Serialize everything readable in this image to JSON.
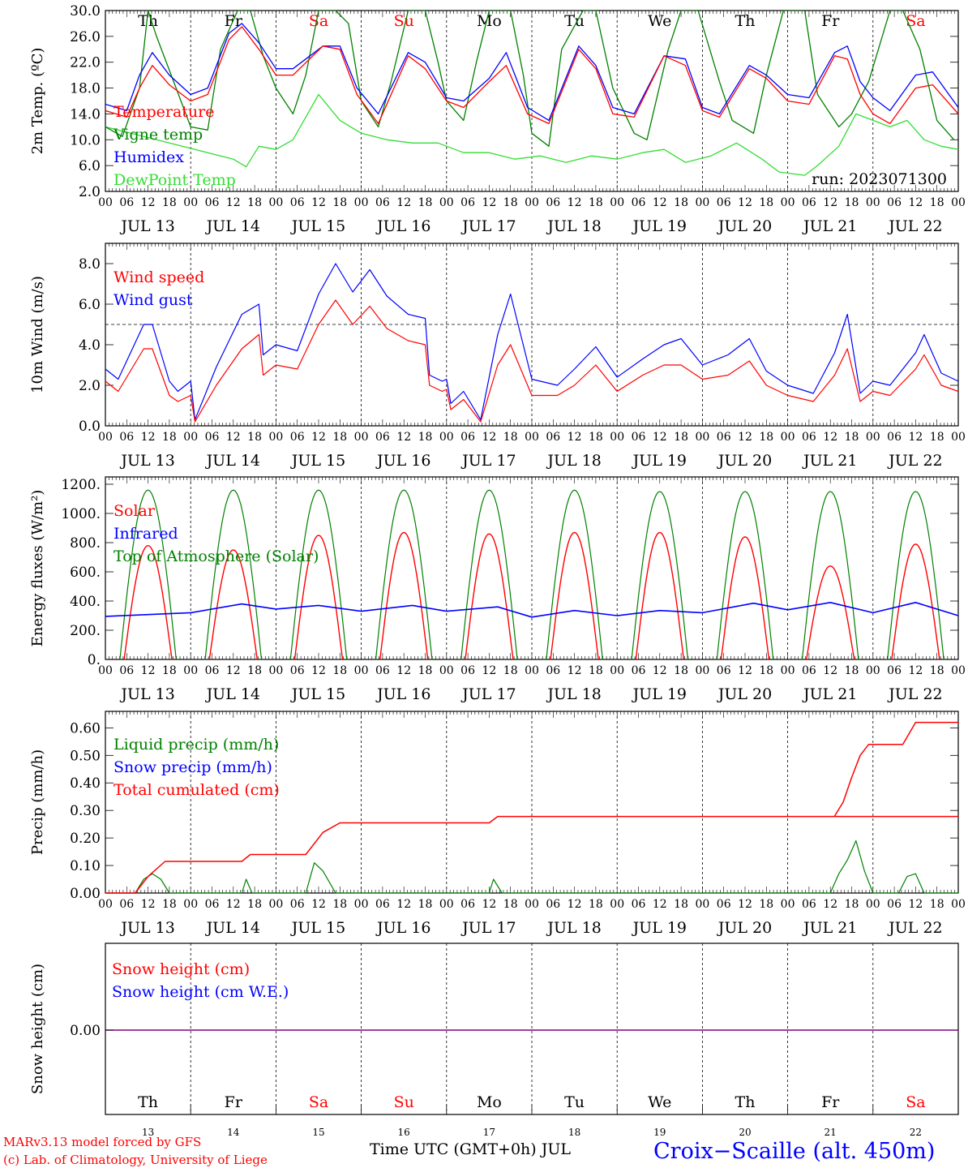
{
  "colors": {
    "red": "#ff0000",
    "blue": "#0000ff",
    "green": "#008000",
    "lightgreen": "#33dd33",
    "purple": "#800080",
    "black": "#000000"
  },
  "days": [
    {
      "wd": "Th",
      "date": "JUL 13",
      "num": "13",
      "weekend": false
    },
    {
      "wd": "Fr",
      "date": "JUL 14",
      "num": "14",
      "weekend": false
    },
    {
      "wd": "Sa",
      "date": "JUL 15",
      "num": "15",
      "weekend": true
    },
    {
      "wd": "Su",
      "date": "JUL 16",
      "num": "16",
      "weekend": true
    },
    {
      "wd": "Mo",
      "date": "JUL 17",
      "num": "17",
      "weekend": false
    },
    {
      "wd": "Tu",
      "date": "JUL 18",
      "num": "18",
      "weekend": false
    },
    {
      "wd": "We",
      "date": "JUL 19",
      "num": "19",
      "weekend": false
    },
    {
      "wd": "Th",
      "date": "JUL 20",
      "num": "20",
      "weekend": false
    },
    {
      "wd": "Fr",
      "date": "JUL 21",
      "num": "21",
      "weekend": false
    },
    {
      "wd": "Sa",
      "date": "JUL 22",
      "num": "22",
      "weekend": true
    }
  ],
  "hour_ticks": [
    "00",
    "06",
    "12",
    "18"
  ],
  "run_label": "run: 2023071300",
  "footer": {
    "model": "MARv3.13 model forced by GFS",
    "copyright": "(c) Lab. of Climatology, University of Liege",
    "xlabel": "Time UTC (GMT+0h) JUL",
    "station": "Croix−Scaille (alt. 450m)"
  },
  "chart_data": [
    {
      "type": "line",
      "ylabel": "2m Temp. (ºC)",
      "ylim": [
        2.0,
        30.0
      ],
      "yticks": [
        2.0,
        6.0,
        10.0,
        14.0,
        18.0,
        22.0,
        26.0,
        30.0
      ],
      "ytick_labels": [
        "2.0",
        "6.0",
        "10.0",
        "14.0",
        "18.0",
        "22.0",
        "26.0",
        "30.0"
      ],
      "x_unit": "day index since 13 JUL 00 UTC",
      "series": [
        {
          "name": "Temperature",
          "color": "#ff0000",
          "x": [
            0,
            0.25,
            0.4,
            0.55,
            0.75,
            1.0,
            1.2,
            1.45,
            1.6,
            1.8,
            2.0,
            2.2,
            2.55,
            2.75,
            2.95,
            3.2,
            3.55,
            3.75,
            4.0,
            4.2,
            4.5,
            4.7,
            4.95,
            5.2,
            5.55,
            5.75,
            5.95,
            6.2,
            6.55,
            6.8,
            7.0,
            7.2,
            7.55,
            7.75,
            8.0,
            8.25,
            8.55,
            8.7,
            8.85,
            9.0,
            9.2,
            9.5,
            9.7,
            10.0
          ],
          "y": [
            14.5,
            13.5,
            18,
            21.5,
            18.5,
            16,
            17,
            25.5,
            27.5,
            24,
            20,
            20,
            24.5,
            24,
            17,
            12.5,
            23,
            21,
            16,
            15,
            19,
            21.5,
            14,
            12.5,
            24,
            21,
            14,
            13.5,
            23,
            21.5,
            14.5,
            13.5,
            21,
            19.5,
            16,
            15.5,
            23,
            22.5,
            17,
            14,
            12.5,
            18,
            18.5,
            14
          ]
        },
        {
          "name": "Vigne temp",
          "color": "#008000",
          "x": [
            0,
            0.2,
            0.4,
            0.5,
            0.6,
            0.8,
            1.0,
            1.2,
            1.35,
            1.55,
            1.7,
            1.85,
            2.0,
            2.2,
            2.35,
            2.5,
            2.7,
            2.85,
            3.0,
            3.2,
            3.35,
            3.55,
            3.75,
            3.9,
            4.0,
            4.2,
            4.35,
            4.5,
            4.75,
            4.9,
            5.0,
            5.2,
            5.35,
            5.6,
            5.75,
            5.95,
            6.2,
            6.35,
            6.6,
            6.75,
            6.95,
            7.2,
            7.35,
            7.6,
            7.75,
            7.95,
            8.2,
            8.35,
            8.6,
            8.75,
            8.95,
            9.2,
            9.35,
            9.55,
            9.75,
            9.95
          ],
          "y": [
            12,
            10.5,
            18,
            30,
            26,
            19,
            12,
            11.5,
            24,
            30,
            30,
            23,
            18,
            14,
            20,
            30,
            30,
            28,
            16,
            12,
            19,
            30,
            30,
            22,
            16,
            13,
            22,
            30,
            30,
            20,
            11,
            9,
            24,
            30,
            30,
            18,
            11,
            10,
            24,
            30,
            30,
            19,
            13,
            11,
            20,
            30,
            30,
            17,
            12,
            14,
            19,
            30,
            30,
            24,
            13,
            10
          ]
        },
        {
          "name": "Humidex",
          "color": "#0000ff",
          "x": [
            0,
            0.25,
            0.4,
            0.55,
            0.75,
            1.0,
            1.2,
            1.45,
            1.6,
            1.8,
            2.0,
            2.2,
            2.55,
            2.75,
            2.95,
            3.2,
            3.55,
            3.75,
            4.0,
            4.2,
            4.5,
            4.7,
            4.95,
            5.2,
            5.55,
            5.75,
            5.95,
            6.2,
            6.55,
            6.8,
            7.0,
            7.2,
            7.55,
            7.75,
            8.0,
            8.25,
            8.55,
            8.7,
            8.85,
            9.0,
            9.2,
            9.5,
            9.7,
            10.0
          ],
          "y": [
            15.5,
            14.5,
            20,
            23.5,
            20,
            17,
            18,
            26.5,
            28,
            25,
            21,
            21,
            24.5,
            24.5,
            18,
            14,
            23.5,
            22,
            16.5,
            16,
            19.5,
            23.5,
            15,
            13,
            24.5,
            21.5,
            15,
            14,
            23,
            22.5,
            15,
            14,
            21.5,
            20,
            17,
            16.5,
            23.5,
            24.5,
            19,
            16.5,
            14.5,
            20,
            20.5,
            15
          ]
        },
        {
          "name": "DewPoint Temp",
          "color": "#33dd33",
          "x": [
            0,
            0.3,
            0.6,
            0.9,
            1.2,
            1.5,
            1.65,
            1.8,
            2.0,
            2.2,
            2.5,
            2.75,
            3.0,
            3.3,
            3.6,
            3.9,
            4.2,
            4.5,
            4.8,
            5.1,
            5.4,
            5.7,
            6.0,
            6.3,
            6.55,
            6.8,
            7.1,
            7.4,
            7.7,
            7.9,
            8.2,
            8.35,
            8.6,
            8.8,
            9.0,
            9.2,
            9.4,
            9.6,
            9.8,
            10.0
          ],
          "y": [
            12,
            11,
            10,
            9,
            8,
            7,
            5.8,
            9,
            8.5,
            10,
            17,
            13,
            11,
            10,
            9.5,
            9.5,
            8,
            8,
            7,
            7.5,
            6.5,
            7.5,
            7,
            8,
            8.5,
            6.5,
            7.5,
            9.5,
            7,
            5,
            4.5,
            6,
            9,
            14,
            13,
            12,
            13,
            10,
            9,
            8.5
          ]
        }
      ]
    },
    {
      "type": "line",
      "ylabel": "10m Wind (m/s)",
      "ylim": [
        0.0,
        9.0
      ],
      "yticks": [
        0.0,
        2.0,
        4.0,
        6.0,
        8.0
      ],
      "ytick_labels": [
        "0.0",
        "2.0",
        "4.0",
        "6.0",
        "8.0"
      ],
      "threshold": 5.0,
      "series": [
        {
          "name": "Wind speed",
          "color": "#ff0000",
          "x": [
            0,
            0.15,
            0.45,
            0.55,
            0.75,
            0.85,
            1.0,
            1.05,
            1.3,
            1.6,
            1.8,
            1.85,
            2.0,
            2.25,
            2.5,
            2.7,
            2.9,
            3.1,
            3.3,
            3.55,
            3.75,
            3.8,
            3.95,
            4.0,
            4.05,
            4.2,
            4.4,
            4.6,
            4.75,
            5.0,
            5.3,
            5.5,
            5.75,
            6.0,
            6.3,
            6.55,
            6.75,
            7.0,
            7.3,
            7.55,
            7.75,
            8.0,
            8.3,
            8.55,
            8.7,
            8.85,
            9.0,
            9.2,
            9.5,
            9.6,
            9.8,
            10.0
          ],
          "y": [
            2.2,
            1.7,
            3.8,
            3.8,
            1.5,
            1.2,
            1.5,
            0.2,
            2.0,
            3.8,
            4.5,
            2.5,
            3.0,
            2.8,
            5.0,
            6.2,
            5.0,
            5.9,
            4.8,
            4.2,
            4.0,
            2.0,
            1.7,
            1.8,
            0.8,
            1.3,
            0.2,
            3.0,
            4.0,
            1.5,
            1.5,
            2.0,
            3.0,
            1.7,
            2.5,
            3.0,
            3.0,
            2.3,
            2.5,
            3.2,
            2.0,
            1.5,
            1.2,
            2.5,
            3.8,
            1.2,
            1.7,
            1.5,
            2.8,
            3.5,
            2.0,
            1.7
          ]
        },
        {
          "name": "Wind gust",
          "color": "#0000ff",
          "x": [
            0,
            0.15,
            0.45,
            0.55,
            0.75,
            0.85,
            1.0,
            1.05,
            1.3,
            1.6,
            1.8,
            1.85,
            2.0,
            2.25,
            2.5,
            2.7,
            2.9,
            3.1,
            3.3,
            3.55,
            3.75,
            3.8,
            3.95,
            4.0,
            4.05,
            4.2,
            4.4,
            4.6,
            4.75,
            5.0,
            5.3,
            5.5,
            5.75,
            6.0,
            6.3,
            6.55,
            6.75,
            7.0,
            7.3,
            7.55,
            7.75,
            8.0,
            8.3,
            8.55,
            8.7,
            8.85,
            9.0,
            9.2,
            9.5,
            9.6,
            9.8,
            10.0
          ],
          "y": [
            2.8,
            2.3,
            5.0,
            5.0,
            2.2,
            1.7,
            2.2,
            0.3,
            2.9,
            5.5,
            6.0,
            3.5,
            4.0,
            3.7,
            6.5,
            8.0,
            6.6,
            7.7,
            6.4,
            5.5,
            5.3,
            2.5,
            2.2,
            2.3,
            1.1,
            1.7,
            0.3,
            4.5,
            6.5,
            2.3,
            2.0,
            2.8,
            3.9,
            2.4,
            3.3,
            4.0,
            4.3,
            3.0,
            3.5,
            4.3,
            2.7,
            2.0,
            1.6,
            3.6,
            5.5,
            1.6,
            2.2,
            2.0,
            3.6,
            4.5,
            2.6,
            2.2
          ]
        }
      ]
    },
    {
      "type": "line",
      "ylabel": "Energy fluxes (W/m²)",
      "ylim": [
        0,
        1250
      ],
      "yticks": [
        0,
        200,
        400,
        600,
        800,
        1000,
        1200
      ],
      "ytick_labels": [
        "0.",
        "200.",
        "400.",
        "600.",
        "800.",
        "1000.",
        "1200."
      ],
      "series": [
        {
          "name": "Solar",
          "color": "#ff0000",
          "peaks": [
            780,
            750,
            850,
            870,
            860,
            870,
            870,
            840,
            640,
            790
          ]
        },
        {
          "name": "Infrared",
          "color": "#0000ff",
          "x": [
            0,
            1,
            1.6,
            2,
            2.5,
            3,
            3.6,
            4,
            4.6,
            5,
            5.5,
            6,
            6.5,
            7,
            7.6,
            8,
            8.5,
            9,
            9.5,
            10
          ],
          "y": [
            295,
            320,
            380,
            345,
            370,
            330,
            370,
            330,
            360,
            290,
            335,
            300,
            335,
            320,
            385,
            340,
            390,
            320,
            390,
            300
          ]
        },
        {
          "name": "Top of Atmosphere (Solar)",
          "color": "#008000",
          "peaks": [
            1160,
            1160,
            1160,
            1160,
            1160,
            1160,
            1150,
            1150,
            1150,
            1150
          ]
        }
      ]
    },
    {
      "type": "line",
      "ylabel": "Precip (mm/h)",
      "ylim": [
        0.0,
        0.66
      ],
      "yticks": [
        0.0,
        0.1,
        0.2,
        0.3,
        0.4,
        0.5,
        0.6
      ],
      "ytick_labels": [
        "0.00",
        "0.10",
        "0.20",
        "0.30",
        "0.40",
        "0.50",
        "0.60"
      ],
      "series": [
        {
          "name": "Liquid precip (mm/h)",
          "color": "#008000",
          "x": [
            0,
            0.35,
            0.45,
            0.55,
            0.65,
            0.75,
            1.6,
            1.65,
            1.72,
            2.35,
            2.45,
            2.55,
            2.7,
            4.5,
            4.55,
            4.65,
            8.5,
            8.6,
            8.7,
            8.8,
            8.9,
            9.0,
            9.3,
            9.4,
            9.5,
            9.6,
            10.0
          ],
          "y": [
            0,
            0,
            0.05,
            0.07,
            0.05,
            0,
            0,
            0.05,
            0,
            0,
            0.11,
            0.08,
            0,
            0,
            0.05,
            0,
            0,
            0.07,
            0.12,
            0.19,
            0.08,
            0,
            0,
            0.06,
            0.07,
            0,
            0
          ]
        },
        {
          "name": "Snow precip (mm/h)",
          "color": "#0000ff",
          "x": [
            0,
            10
          ],
          "y": [
            0,
            0
          ]
        },
        {
          "name": "Total cumulated (cm)",
          "color": "#ff0000",
          "x": [
            0,
            0.35,
            0.5,
            0.7,
            1.6,
            1.7,
            2.35,
            2.55,
            2.75,
            4.5,
            4.6,
            10.0
          ],
          "y": [
            0,
            0,
            0.06,
            0.115,
            0.115,
            0.14,
            0.14,
            0.22,
            0.255,
            0.255,
            0.278,
            0.278
          ],
          "x2": [
            8.55,
            8.65,
            8.75,
            8.85,
            8.95,
            9.1,
            9.35,
            9.5,
            10.0
          ],
          "y2": [
            0.28,
            0.33,
            0.42,
            0.5,
            0.54,
            0.54,
            0.54,
            0.62,
            0.62
          ]
        }
      ]
    },
    {
      "type": "line",
      "ylabel": "Snow height (cm)",
      "ytick_labels": [
        "0.00"
      ],
      "series": [
        {
          "name": "Snow height (cm)",
          "color": "#ff0000",
          "x": [
            0,
            10
          ],
          "y": [
            0,
            0
          ]
        },
        {
          "name": "Snow height (cm W.E.)",
          "color": "#0000ff",
          "x": [
            0,
            10
          ],
          "y": [
            0,
            0
          ]
        }
      ]
    }
  ]
}
